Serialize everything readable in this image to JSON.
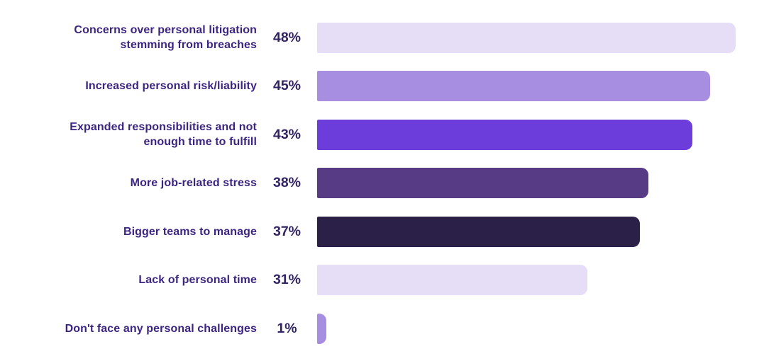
{
  "chart_data": {
    "type": "bar",
    "orientation": "horizontal",
    "title": "",
    "xlabel": "",
    "ylabel": "",
    "categories": [
      "Concerns over personal litigation stemming from breaches",
      "Increased personal risk/liability",
      "Expanded responsibilities and not enough time to fulfill",
      "More job-related stress",
      "Bigger teams to manage",
      "Lack of personal time",
      "Don't face any personal challenges"
    ],
    "values": [
      48,
      45,
      43,
      38,
      37,
      31,
      1
    ],
    "value_labels": [
      "48%",
      "45%",
      "43%",
      "38%",
      "37%",
      "31%",
      "1%"
    ],
    "bar_colors": [
      "#E5DEF6",
      "#A88EE1",
      "#6C3DDB",
      "#573C85",
      "#2B2148",
      "#E5DEF6",
      "#A88EE1"
    ],
    "label_color": "#3C2483",
    "value_color": "#322364",
    "background_color": "#FFFFFF",
    "xlim": [
      0,
      52
    ],
    "grid": false,
    "legend": "none"
  }
}
